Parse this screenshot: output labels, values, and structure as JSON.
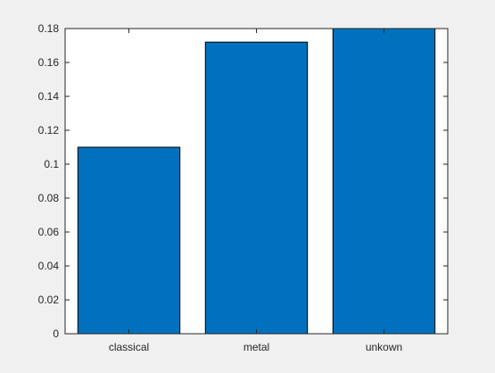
{
  "chart_data": {
    "type": "bar",
    "title": "",
    "xlabel": "",
    "ylabel": "",
    "categories": [
      "classical",
      "metal",
      "unkown"
    ],
    "values": [
      0.11,
      0.172,
      0.18
    ],
    "ylim": [
      0,
      0.18
    ],
    "yticks": [
      0,
      0.02,
      0.04,
      0.06,
      0.08,
      0.1,
      0.12,
      0.14,
      0.16,
      0.18
    ],
    "ytick_labels": [
      "0",
      "0.02",
      "0.04",
      "0.06",
      "0.08",
      "0.1",
      "0.12",
      "0.14",
      "0.16",
      "0.18"
    ],
    "grid": false,
    "legend": "none",
    "colors": {
      "bar": "#0072bd",
      "bar_edge": "#000000",
      "axes": "#262626",
      "plot_background": "#ffffff",
      "figure_background": "#f0f0f0"
    }
  }
}
